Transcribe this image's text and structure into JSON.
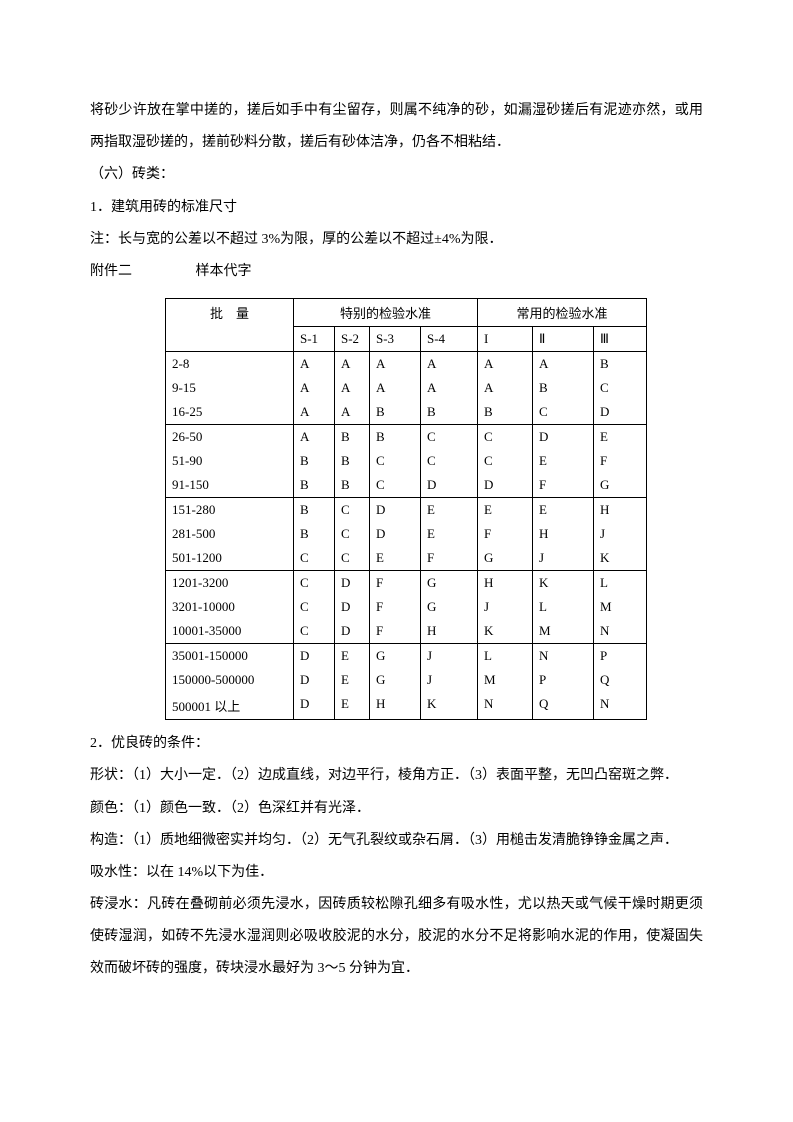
{
  "p1": "将砂少许放在掌中搓的，搓后如手中有尘留存，则属不纯净的砂，如漏湿砂搓后有泥迹亦然，或用两指取湿砂搓的，搓前砂料分散，搓后有砂体洁净，仍各不相粘结．",
  "p2": "（六）砖类：",
  "p3": "1．建筑用砖的标准尺寸",
  "p4": "注：长与宽的公差以不超过 3%为限，厚的公差以不超过±4%为限．",
  "attach_label": "附件二",
  "attach_title": "样本代字",
  "table": {
    "hdr_batch": "批　量",
    "hdr_special": "特别的检验水准",
    "hdr_common": "常用的检验水准",
    "sub": [
      "S-1",
      "S-2",
      "S-3",
      "S-4",
      "I",
      "Ⅱ",
      "Ⅲ"
    ],
    "groups": [
      [
        [
          "2-8",
          "A",
          "A",
          "A",
          "A",
          "A",
          "A",
          "B"
        ],
        [
          "9-15",
          "A",
          "A",
          "A",
          "A",
          "A",
          "B",
          "C"
        ],
        [
          "16-25",
          "A",
          "A",
          "B",
          "B",
          "B",
          "C",
          "D"
        ]
      ],
      [
        [
          "26-50",
          "A",
          "B",
          "B",
          "C",
          "C",
          "D",
          "E"
        ],
        [
          "51-90",
          "B",
          "B",
          "C",
          "C",
          "C",
          "E",
          "F"
        ],
        [
          "91-150",
          "B",
          "B",
          "C",
          "D",
          "D",
          "F",
          "G"
        ]
      ],
      [
        [
          "151-280",
          "B",
          "C",
          "D",
          "E",
          "E",
          "E",
          "H"
        ],
        [
          "281-500",
          "B",
          "C",
          "D",
          "E",
          "F",
          "H",
          "J"
        ],
        [
          "501-1200",
          "C",
          "C",
          "E",
          "F",
          "G",
          "J",
          "K"
        ]
      ],
      [
        [
          "1201-3200",
          "C",
          "D",
          "F",
          "G",
          "H",
          "K",
          "L"
        ],
        [
          "3201-10000",
          "C",
          "D",
          "F",
          "G",
          "J",
          "L",
          "M"
        ],
        [
          "10001-35000",
          "C",
          "D",
          "F",
          "H",
          "K",
          "M",
          "N"
        ]
      ],
      [
        [
          "35001-150000",
          "D",
          "E",
          "G",
          "J",
          "L",
          "N",
          "P"
        ],
        [
          "150000-500000",
          "D",
          "E",
          "G",
          "J",
          "M",
          "P",
          "Q"
        ],
        [
          "500001 以上",
          "D",
          "E",
          "H",
          "K",
          "N",
          "Q",
          "N"
        ]
      ]
    ]
  },
  "p5": "2．优良砖的条件：",
  "p6": "形状：（1）大小一定．（2）边成直线，对边平行，棱角方正．（3）表面平整，无凹凸窑斑之弊．",
  "p7": "颜色：（1）颜色一致．（2）色深红并有光泽．",
  "p8": "构造：（1）质地细微密实并均匀．（2）无气孔裂纹或杂石屑．（3）用槌击发清脆铮铮金属之声．",
  "p9": "吸水性：以在 14%以下为佳．",
  "p10": "砖浸水：凡砖在叠砌前必须先浸水，因砖质较松隙孔细多有吸水性，尤以热天或气候干燥时期更须使砖湿润，如砖不先浸水湿润则必吸收胶泥的水分，胶泥的水分不足将影响水泥的作用，使凝固失效而破坏砖的强度，砖块浸水最好为 3～5 分钟为宜．"
}
